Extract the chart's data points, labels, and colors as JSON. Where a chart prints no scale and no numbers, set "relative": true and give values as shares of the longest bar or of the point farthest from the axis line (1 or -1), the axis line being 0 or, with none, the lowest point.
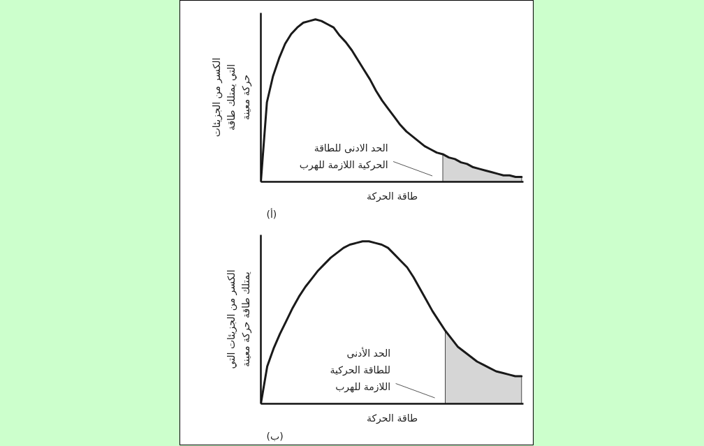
{
  "chart_data": [
    {
      "type": "line",
      "title": "(أ)",
      "xlabel": "طاقة الحركة",
      "ylabel": "الكسر من الجزيئات\nالتي يمتلك طاقة\nحركة معينة",
      "relative": true,
      "categories": [
        null,
        null,
        null,
        null,
        null,
        null,
        null,
        null,
        null,
        null,
        null,
        null,
        null,
        null,
        null,
        null,
        null,
        null,
        null,
        null,
        null,
        null,
        null,
        null,
        null,
        null,
        null,
        null,
        null,
        null,
        null,
        null,
        null,
        null,
        null,
        null,
        null,
        null,
        null,
        null,
        null,
        null,
        null,
        null
      ],
      "series": [
        {
          "color": "#1a1a1a",
          "values": [
            0,
            0.49,
            0.65,
            0.76,
            0.85,
            0.91,
            0.95,
            0.98,
            0.99,
            1,
            0.99,
            0.97,
            0.95,
            0.9,
            0.86,
            0.81,
            0.75,
            0.69,
            0.63,
            0.56,
            0.5,
            0.45,
            0.4,
            0.35,
            0.31,
            0.28,
            0.25,
            0.22,
            0.2,
            0.18,
            0.17,
            0.15,
            0.14,
            0.12,
            0.11,
            0.09,
            0.08,
            0.07,
            0.06,
            0.05,
            0.04,
            0.04,
            0.03,
            0.03
          ]
        },
        {
          "type": "area",
          "color": "#d6d6d6",
          "values": [
            null,
            null,
            null,
            null,
            null,
            null,
            null,
            null,
            null,
            null,
            null,
            null,
            null,
            null,
            null,
            null,
            null,
            null,
            null,
            null,
            null,
            null,
            null,
            null,
            null,
            null,
            null,
            null,
            null,
            null,
            0.17,
            0.15,
            0.14,
            0.12,
            0.11,
            0.09,
            0.08,
            0.07,
            0.06,
            0.05,
            0.04,
            0.04,
            0.03,
            0.03
          ]
        }
      ],
      "annotations": [
        "الحد الادنى للطاقة\nالحركية اللازمة للهرب"
      ]
    },
    {
      "type": "line",
      "title": "(ب)",
      "xlabel": "طاقة الحركة",
      "ylabel": "الكسر من الجزيئات التي\nيمتلك طاقة حركة معينة",
      "relative": true,
      "categories": [
        null,
        null,
        null,
        null,
        null,
        null,
        null,
        null,
        null,
        null,
        null,
        null,
        null,
        null,
        null,
        null,
        null,
        null,
        null,
        null,
        null,
        null,
        null,
        null,
        null,
        null,
        null,
        null,
        null,
        null,
        null,
        null,
        null,
        null,
        null,
        null,
        null,
        null,
        null,
        null,
        null,
        null
      ],
      "series": [
        {
          "color": "#1a1a1a",
          "values": [
            0,
            0.23,
            0.34,
            0.43,
            0.51,
            0.59,
            0.66,
            0.72,
            0.77,
            0.82,
            0.86,
            0.9,
            0.93,
            0.96,
            0.98,
            0.99,
            1,
            1,
            0.99,
            0.98,
            0.96,
            0.92,
            0.88,
            0.84,
            0.78,
            0.71,
            0.64,
            0.57,
            0.51,
            0.45,
            0.4,
            0.35,
            0.32,
            0.29,
            0.26,
            0.24,
            0.22,
            0.2,
            0.19,
            0.18,
            0.17,
            0.17
          ]
        },
        {
          "type": "area",
          "color": "#d6d6d6",
          "values": [
            null,
            null,
            null,
            null,
            null,
            null,
            null,
            null,
            null,
            null,
            null,
            null,
            null,
            null,
            null,
            null,
            null,
            null,
            null,
            null,
            null,
            null,
            null,
            null,
            null,
            null,
            null,
            null,
            null,
            0.45,
            0.4,
            0.35,
            0.32,
            0.29,
            0.26,
            0.24,
            0.22,
            0.2,
            0.19,
            0.18,
            0.17,
            0.17
          ]
        }
      ],
      "annotations": [
        "الحد الأدنى\nللطاقة الحركية\nاللازمة للهرب"
      ]
    }
  ]
}
